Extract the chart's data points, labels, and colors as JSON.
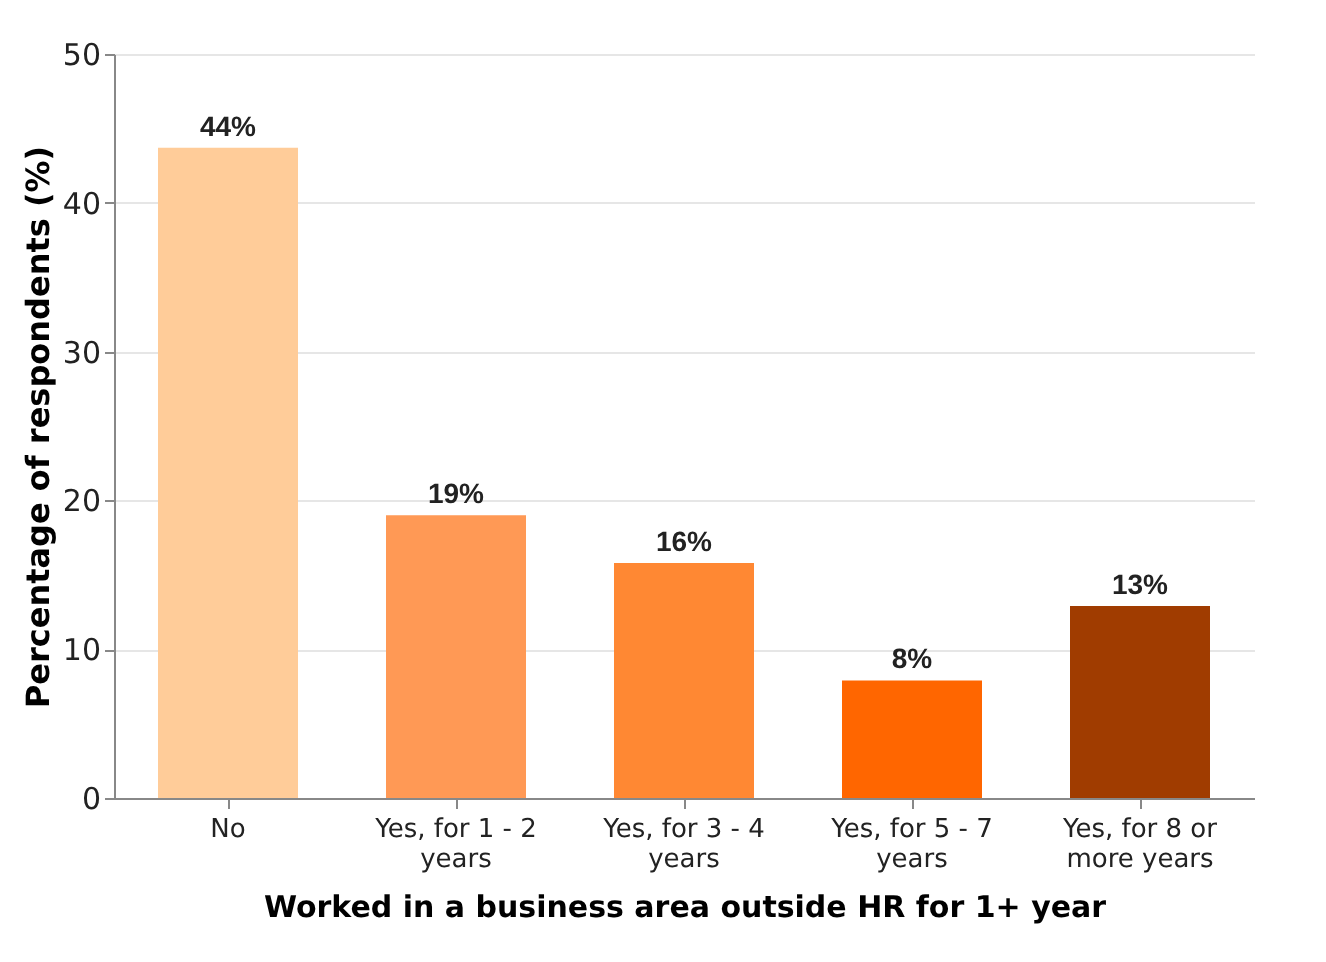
{
  "chart_data": {
    "type": "bar",
    "xlabel": "Worked in a business area outside HR for 1+ year",
    "ylabel": "Percentage of respondents (%)",
    "categories": [
      "No",
      "Yes, for 1 - 2 years",
      "Yes, for 3 - 4 years",
      "Yes, for 5 - 7 years",
      "Yes, for 8 or more years"
    ],
    "values": [
      43.7,
      19,
      15.8,
      7.9,
      12.9
    ],
    "value_labels": [
      "44%",
      "19%",
      "16%",
      "8%",
      "13%"
    ],
    "colors": [
      "#ffcc99",
      "#ff9955",
      "#ff8833",
      "#ff6600",
      "#a03c00"
    ],
    "ylim": [
      0,
      50
    ],
    "yticks": [
      0,
      10,
      20,
      30,
      40,
      50
    ],
    "grid": "y"
  }
}
